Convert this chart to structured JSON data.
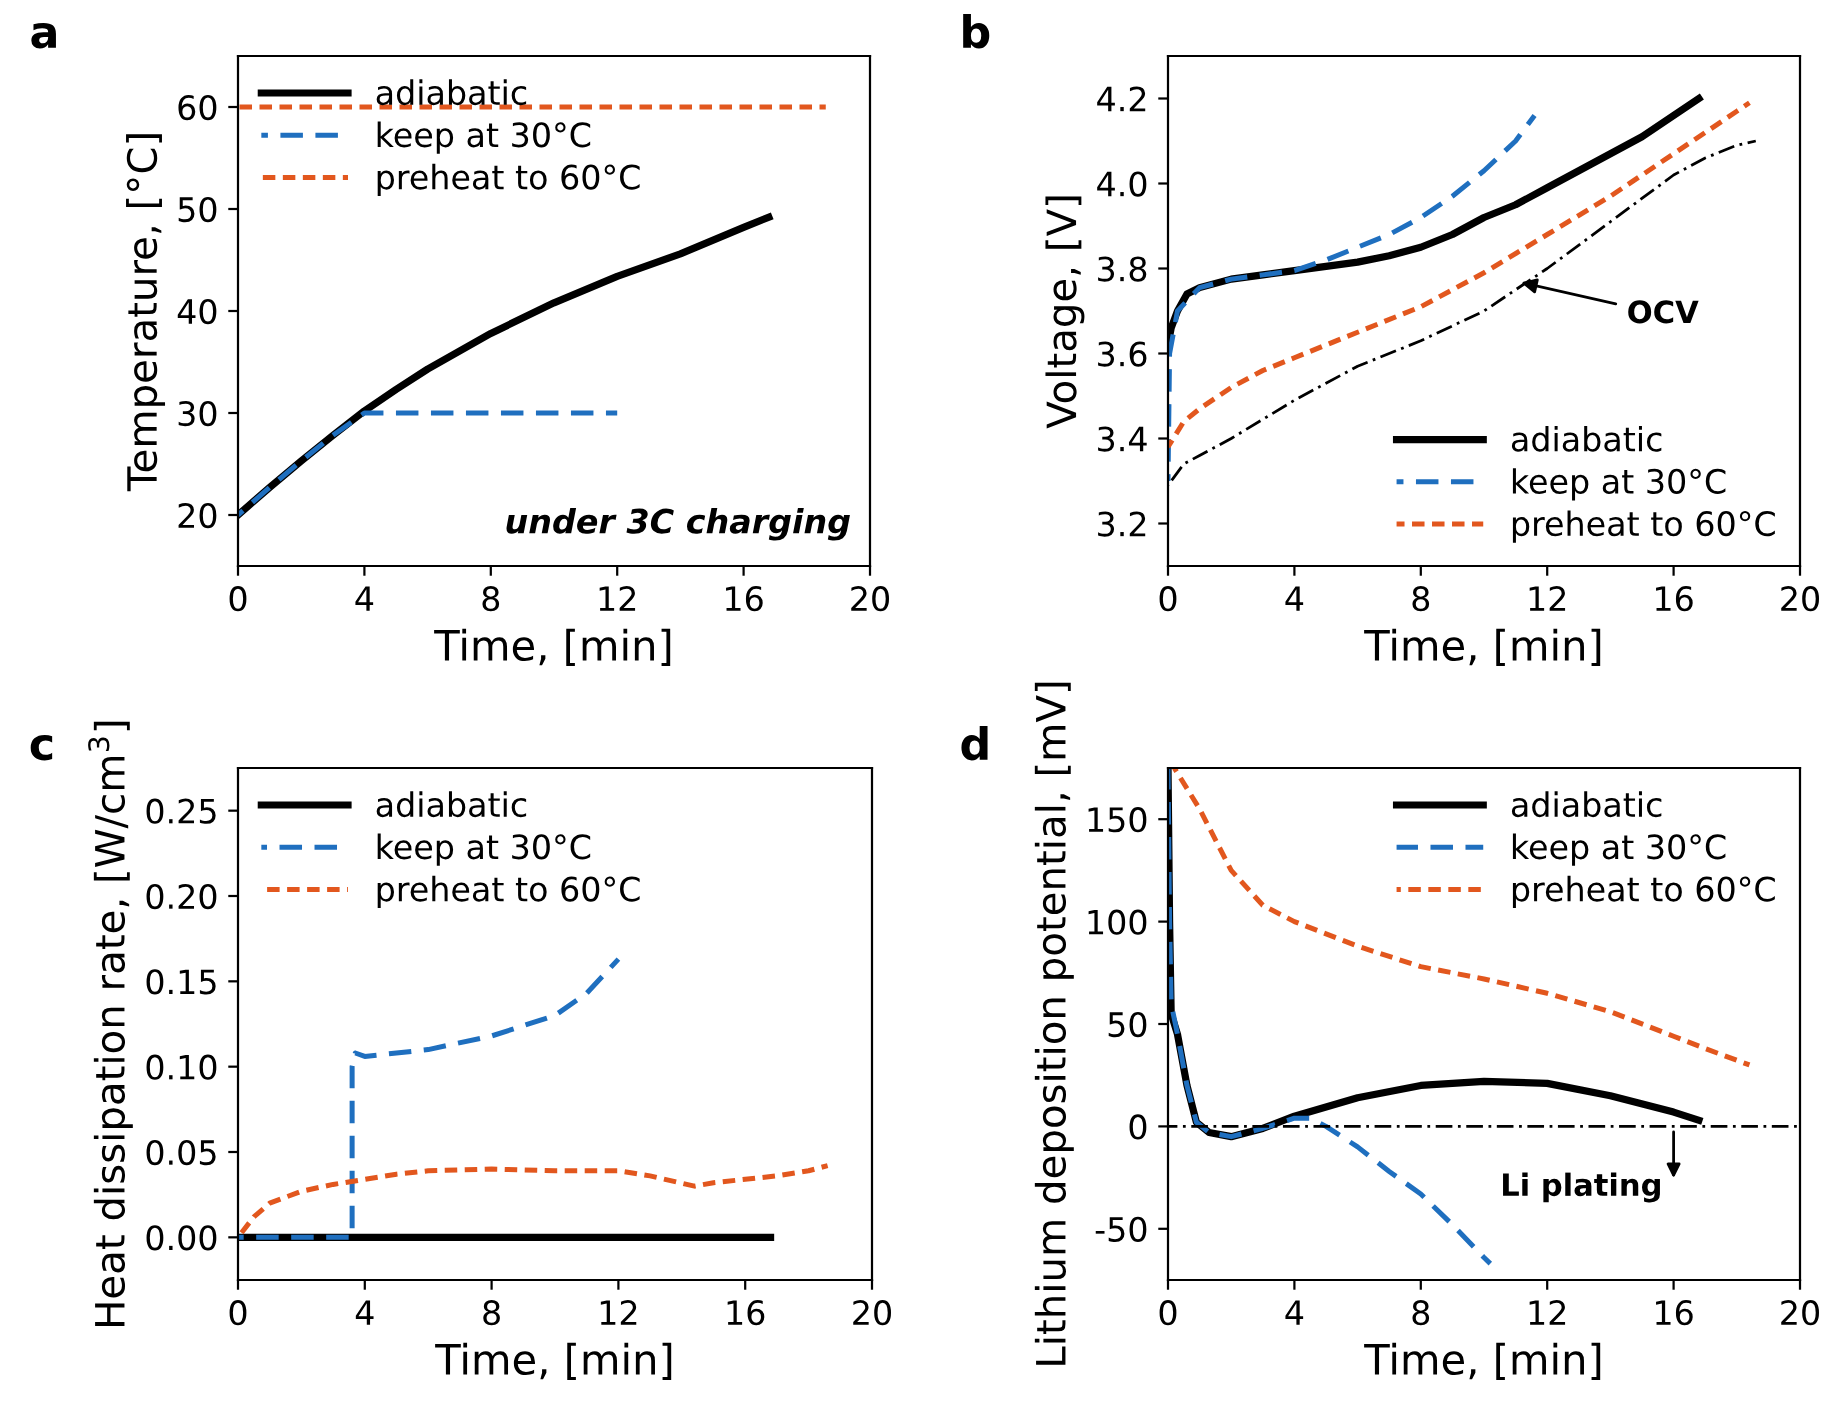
{
  "chart_data": [
    {
      "type": "line",
      "title": "a",
      "xlabel": "Time, [min]",
      "ylabel": "Temperature, [°C]",
      "xlim": [
        0,
        20
      ],
      "xticks": [
        0,
        4,
        8,
        12,
        16,
        20
      ],
      "ylim": [
        15,
        65
      ],
      "yticks": [
        20,
        30,
        40,
        50,
        60
      ],
      "legend": "top left",
      "grid": false,
      "series": [
        {
          "name": "adiabatic",
          "color": "#000000",
          "line_style": "solid",
          "x": [
            0,
            1,
            2,
            3,
            4,
            5,
            6,
            8,
            10,
            12,
            14,
            16,
            16.8
          ],
          "values": [
            20,
            22.7,
            25.3,
            27.8,
            30.2,
            32.3,
            34.3,
            37.8,
            40.8,
            43.4,
            45.6,
            48.2,
            49.2
          ]
        },
        {
          "name": "keep at 30°C",
          "color": "#1f6fbf",
          "line_style": "dashed",
          "x": [
            0,
            1,
            2,
            3,
            4,
            12
          ],
          "values": [
            20,
            22.7,
            25.3,
            27.8,
            30,
            30
          ]
        },
        {
          "name": "preheat to 60°C",
          "color": "#e2571e",
          "line_style": "dotted",
          "x": [
            0,
            18.6
          ],
          "values": [
            60,
            60
          ]
        }
      ],
      "annotations": [
        "under 3C charging"
      ]
    },
    {
      "type": "line",
      "title": "b",
      "xlabel": "Time, [min]",
      "ylabel": "Voltage, [V]",
      "xlim": [
        0,
        20
      ],
      "xticks": [
        0,
        4,
        8,
        12,
        16,
        20
      ],
      "ylim": [
        3.1,
        4.3
      ],
      "yticks": [
        {
          "value": 3.2,
          "label": "3.2"
        },
        {
          "value": 3.4,
          "label": "3.4"
        },
        {
          "value": 3.6,
          "label": "3.6"
        },
        {
          "value": 3.8,
          "label": "3.8"
        },
        {
          "value": 4.0,
          "label": "4.0"
        },
        {
          "value": 4.2,
          "label": "4.2"
        }
      ],
      "legend": "bottom right",
      "grid": false,
      "series": [
        {
          "name": "adiabatic",
          "color": "#000000",
          "line_style": "solid",
          "x": [
            0,
            0.1,
            0.3,
            0.6,
            1,
            2,
            3,
            4,
            5,
            6,
            7,
            8,
            9,
            10,
            11,
            12,
            13,
            14,
            15,
            16,
            16.8
          ],
          "values": [
            3.62,
            3.66,
            3.7,
            3.74,
            3.755,
            3.775,
            3.785,
            3.795,
            3.805,
            3.815,
            3.83,
            3.85,
            3.88,
            3.92,
            3.95,
            3.99,
            4.03,
            4.07,
            4.11,
            4.16,
            4.2
          ]
        },
        {
          "name": "keep at 30°C",
          "color": "#1f6fbf",
          "line_style": "dashed",
          "x": [
            0,
            0.05,
            0.3,
            1,
            2,
            3,
            4,
            5,
            6,
            7,
            8,
            9,
            10,
            11,
            11.6
          ],
          "values": [
            3.3,
            3.6,
            3.7,
            3.755,
            3.775,
            3.785,
            3.795,
            3.82,
            3.85,
            3.88,
            3.92,
            3.97,
            4.03,
            4.1,
            4.16
          ]
        },
        {
          "name": "preheat to 60°C",
          "color": "#e2571e",
          "line_style": "dotted",
          "x": [
            0,
            0.5,
            1,
            2,
            3,
            4,
            6,
            8,
            10,
            12,
            14,
            16,
            17,
            18,
            18.4
          ],
          "values": [
            3.38,
            3.44,
            3.47,
            3.52,
            3.56,
            3.59,
            3.65,
            3.71,
            3.79,
            3.88,
            3.97,
            4.07,
            4.12,
            4.17,
            4.19
          ]
        },
        {
          "color": "#000000",
          "line_style": "dashdot",
          "x": [
            0,
            0.5,
            1,
            2,
            4,
            6,
            8,
            10,
            12,
            14,
            16,
            17,
            18,
            18.6
          ],
          "values": [
            3.29,
            3.34,
            3.36,
            3.4,
            3.49,
            3.57,
            3.63,
            3.7,
            3.8,
            3.91,
            4.02,
            4.06,
            4.09,
            4.1
          ]
        }
      ],
      "annotations": [
        {
          "text": "OCV",
          "x": 11,
          "y": 3.77
        }
      ]
    },
    {
      "type": "line",
      "title": "c",
      "xlabel": "Time, [min]",
      "ylabel": "Heat dissipation rate, [W/cm$^{3}$]",
      "xlim": [
        0,
        20
      ],
      "xticks": [
        0,
        4,
        8,
        12,
        16,
        20
      ],
      "ylim": [
        -0.025,
        0.275
      ],
      "yticks": [
        {
          "value": 0,
          "label": "0.00"
        },
        {
          "value": 0.05,
          "label": "0.05"
        },
        {
          "value": 0.1,
          "label": "0.10"
        },
        {
          "value": 0.15,
          "label": "0.15"
        },
        {
          "value": 0.2,
          "label": "0.20"
        },
        {
          "value": 0.25,
          "label": "0.25"
        }
      ],
      "legend": "top left",
      "grid": false,
      "series": [
        {
          "name": "adiabatic",
          "color": "#000000",
          "line_style": "solid",
          "x": [
            0,
            16.8
          ],
          "values": [
            0,
            0
          ]
        },
        {
          "name": "keep at 30°C",
          "color": "#1f6fbf",
          "line_style": "dashed",
          "x": [
            0,
            3.6,
            3.6,
            3.7,
            4,
            6,
            8,
            10,
            11,
            12
          ],
          "values": [
            0,
            0,
            0.1,
            0.108,
            0.106,
            0.11,
            0.118,
            0.13,
            0.143,
            0.163
          ]
        },
        {
          "name": "preheat to 60°C",
          "color": "#e2571e",
          "line_style": "dotted",
          "x": [
            0,
            0.5,
            1,
            2,
            3,
            4,
            5,
            6,
            8,
            10,
            12,
            13,
            14.4,
            15,
            16,
            17,
            18,
            18.6
          ],
          "values": [
            0,
            0.012,
            0.02,
            0.027,
            0.031,
            0.034,
            0.037,
            0.039,
            0.04,
            0.039,
            0.039,
            0.036,
            0.03,
            0.032,
            0.034,
            0.036,
            0.039,
            0.042
          ]
        }
      ]
    },
    {
      "type": "line",
      "title": "d",
      "xlabel": "Time, [min]",
      "ylabel": "Lithium deposition potential, [mV]",
      "xlim": [
        0,
        20
      ],
      "xticks": [
        0,
        4,
        8,
        12,
        16,
        20
      ],
      "ylim": [
        -75,
        175
      ],
      "yticks": [
        -50,
        0,
        50,
        100,
        150
      ],
      "legend": "top right",
      "grid": false,
      "series": [
        {
          "name": "adiabatic",
          "color": "#000000",
          "line_style": "solid",
          "x": [
            0,
            0.05,
            0.1,
            0.3,
            0.6,
            0.9,
            1.3,
            2,
            3,
            4,
            6,
            8,
            10,
            12,
            14,
            16,
            16.8
          ],
          "values": [
            175,
            100,
            55,
            45,
            20,
            2,
            -3,
            -5,
            -1,
            5,
            14,
            20,
            22,
            21,
            15,
            7,
            3
          ]
        },
        {
          "name": "keep at 30°C",
          "color": "#1f6fbf",
          "line_style": "dashed",
          "x": [
            0,
            0.05,
            0.1,
            0.3,
            0.6,
            0.9,
            1.3,
            2,
            3,
            4,
            4.5,
            5,
            6,
            7,
            8,
            9,
            10,
            10.2
          ],
          "values": [
            175,
            100,
            60,
            45,
            20,
            2,
            -3,
            -5,
            -1,
            4,
            4,
            0,
            -10,
            -22,
            -33,
            -48,
            -64,
            -67
          ]
        },
        {
          "name": "preheat to 60°C",
          "color": "#e2571e",
          "line_style": "dotted",
          "x": [
            0.2,
            1,
            2,
            3,
            4,
            6,
            8,
            10,
            12,
            14,
            16,
            17,
            18.4
          ],
          "values": [
            175,
            155,
            125,
            108,
            100,
            88,
            78,
            72,
            65,
            56,
            44,
            38,
            30
          ]
        }
      ],
      "ref_lines": [
        {
          "axis": "y",
          "value": 0,
          "color": "#000000",
          "line_style": "dashdot"
        }
      ],
      "annotations": [
        {
          "text": "Li plating",
          "x": 16,
          "y": 0
        }
      ]
    }
  ]
}
